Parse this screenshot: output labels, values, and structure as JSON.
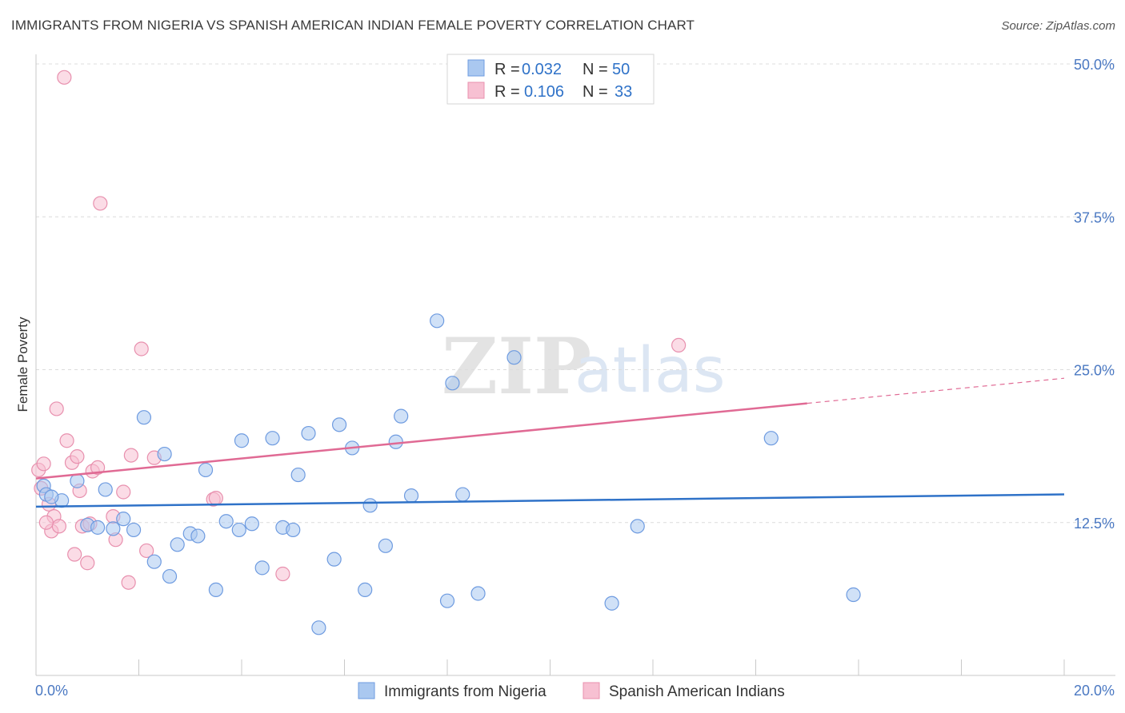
{
  "header": {
    "title": "IMMIGRANTS FROM NIGERIA VS SPANISH AMERICAN INDIAN FEMALE POVERTY CORRELATION CHART",
    "source": "Source: ZipAtlas.com"
  },
  "watermark": {
    "zip": "ZIP",
    "atlas": "atlas"
  },
  "legend": {
    "r_label": "R =",
    "n_label": "N =",
    "entries": [
      {
        "r": "0.032",
        "n": "50",
        "fill": "#aac8f0",
        "stroke": "#6e9be0"
      },
      {
        "r": "0.106",
        "n": "33",
        "fill": "#f7c0d2",
        "stroke": "#e890ae"
      }
    ]
  },
  "chart_data": {
    "type": "scatter",
    "xlabel": "",
    "ylabel": "Female Poverty",
    "xlim": [
      0,
      20
    ],
    "ylim": [
      0,
      50
    ],
    "x_tick_labels": [
      "0.0%",
      "20.0%"
    ],
    "y_ticks": [
      12.5,
      25.0,
      37.5,
      50.0
    ],
    "y_tick_labels": [
      "12.5%",
      "25.0%",
      "37.5%",
      "50.0%"
    ],
    "grid": true,
    "legend_position": "top-center",
    "series": [
      {
        "name": "Immigrants from Nigeria",
        "color": "#aac8f0",
        "stroke": "#6e9be0",
        "line_color": "#2f72c8",
        "trend": {
          "x0": 0,
          "y0": 13.8,
          "x1": 20,
          "y1": 14.8,
          "solid_until": 20
        },
        "points": [
          [
            0.15,
            15.5
          ],
          [
            0.2,
            14.8
          ],
          [
            0.5,
            14.3
          ],
          [
            0.8,
            15.9
          ],
          [
            1.0,
            12.3
          ],
          [
            1.2,
            12.1
          ],
          [
            1.35,
            15.2
          ],
          [
            1.5,
            12.0
          ],
          [
            1.7,
            12.8
          ],
          [
            1.9,
            11.9
          ],
          [
            2.1,
            21.1
          ],
          [
            2.3,
            9.3
          ],
          [
            2.5,
            18.1
          ],
          [
            2.6,
            8.1
          ],
          [
            2.75,
            10.7
          ],
          [
            3.0,
            11.6
          ],
          [
            3.15,
            11.4
          ],
          [
            3.3,
            16.8
          ],
          [
            3.5,
            7.0
          ],
          [
            3.7,
            12.6
          ],
          [
            3.95,
            11.9
          ],
          [
            4.0,
            19.2
          ],
          [
            4.2,
            12.4
          ],
          [
            4.4,
            8.8
          ],
          [
            4.6,
            19.4
          ],
          [
            4.8,
            12.1
          ],
          [
            5.0,
            11.9
          ],
          [
            5.1,
            16.4
          ],
          [
            5.3,
            19.8
          ],
          [
            5.5,
            3.9
          ],
          [
            5.8,
            9.5
          ],
          [
            5.9,
            20.5
          ],
          [
            6.15,
            18.6
          ],
          [
            6.4,
            7.0
          ],
          [
            6.5,
            13.9
          ],
          [
            6.8,
            10.6
          ],
          [
            7.0,
            19.1
          ],
          [
            7.1,
            21.2
          ],
          [
            7.3,
            14.7
          ],
          [
            7.8,
            29.0
          ],
          [
            8.0,
            6.1
          ],
          [
            8.1,
            23.9
          ],
          [
            8.3,
            14.8
          ],
          [
            8.6,
            6.7
          ],
          [
            9.3,
            26.0
          ],
          [
            11.2,
            5.9
          ],
          [
            11.7,
            12.2
          ],
          [
            14.3,
            19.4
          ],
          [
            15.9,
            6.6
          ],
          [
            0.3,
            14.6
          ]
        ]
      },
      {
        "name": "Spanish American Indians",
        "color": "#f7c0d2",
        "stroke": "#e890ae",
        "line_color": "#e06a94",
        "trend": {
          "x0": 0,
          "y0": 16.1,
          "x1": 20,
          "y1": 24.3,
          "solid_until": 15
        },
        "points": [
          [
            0.05,
            16.8
          ],
          [
            0.1,
            15.3
          ],
          [
            0.15,
            17.3
          ],
          [
            0.25,
            14.0
          ],
          [
            0.3,
            11.8
          ],
          [
            0.35,
            13.0
          ],
          [
            0.4,
            21.8
          ],
          [
            0.45,
            12.2
          ],
          [
            0.55,
            48.9
          ],
          [
            0.6,
            19.2
          ],
          [
            0.7,
            17.4
          ],
          [
            0.75,
            9.9
          ],
          [
            0.8,
            17.9
          ],
          [
            0.85,
            15.1
          ],
          [
            0.9,
            12.2
          ],
          [
            1.0,
            9.2
          ],
          [
            1.05,
            12.4
          ],
          [
            1.1,
            16.7
          ],
          [
            1.2,
            17.0
          ],
          [
            1.25,
            38.6
          ],
          [
            1.5,
            13.0
          ],
          [
            1.55,
            11.1
          ],
          [
            1.7,
            15.0
          ],
          [
            1.8,
            7.6
          ],
          [
            1.85,
            18.0
          ],
          [
            2.05,
            26.7
          ],
          [
            2.15,
            10.2
          ],
          [
            2.3,
            17.8
          ],
          [
            3.45,
            14.4
          ],
          [
            3.5,
            14.5
          ],
          [
            4.8,
            8.3
          ],
          [
            12.5,
            27.0
          ],
          [
            0.2,
            12.5
          ]
        ]
      }
    ]
  }
}
